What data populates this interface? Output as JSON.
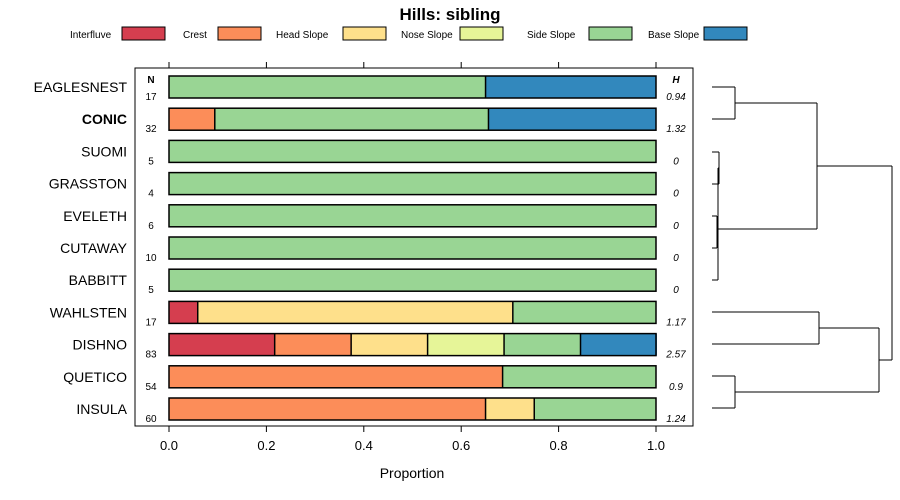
{
  "chart_data": {
    "type": "stacked-bar-horizontal",
    "title": "Hills: sibling",
    "xlabel": "Proportion",
    "xlim": [
      0,
      1
    ],
    "xticks": [
      "0.0",
      "0.2",
      "0.4",
      "0.6",
      "0.8",
      "1.0"
    ],
    "n_header": "N",
    "h_header": "H",
    "legend": [
      {
        "name": "Interfluve",
        "color": "#d53e4f"
      },
      {
        "name": "Crest",
        "color": "#fc8d59"
      },
      {
        "name": "Head Slope",
        "color": "#fee08b"
      },
      {
        "name": "Nose Slope",
        "color": "#e6f598"
      },
      {
        "name": "Side Slope",
        "color": "#99d594"
      },
      {
        "name": "Base Slope",
        "color": "#3288bd"
      }
    ],
    "rows": [
      {
        "label": "EAGLESNEST",
        "bold": false,
        "n": "17",
        "h": "0.94",
        "values": [
          0,
          0,
          0,
          0,
          0.65,
          0.35
        ]
      },
      {
        "label": "CONIC",
        "bold": true,
        "n": "32",
        "h": "1.32",
        "values": [
          0,
          0.094,
          0,
          0,
          0.562,
          0.344
        ]
      },
      {
        "label": "SUOMI",
        "bold": false,
        "n": "5",
        "h": "0",
        "values": [
          0,
          0,
          0,
          0,
          1,
          0
        ]
      },
      {
        "label": "GRASSTON",
        "bold": false,
        "n": "4",
        "h": "0",
        "values": [
          0,
          0,
          0,
          0,
          1,
          0
        ]
      },
      {
        "label": "EVELETH",
        "bold": false,
        "n": "6",
        "h": "0",
        "values": [
          0,
          0,
          0,
          0,
          1,
          0
        ]
      },
      {
        "label": "CUTAWAY",
        "bold": false,
        "n": "10",
        "h": "0",
        "values": [
          0,
          0,
          0,
          0,
          1,
          0
        ]
      },
      {
        "label": "BABBITT",
        "bold": false,
        "n": "5",
        "h": "0",
        "values": [
          0,
          0,
          0,
          0,
          1,
          0
        ]
      },
      {
        "label": "WAHLSTEN",
        "bold": false,
        "n": "17",
        "h": "1.17",
        "values": [
          0.059,
          0,
          0.647,
          0,
          0.294,
          0
        ]
      },
      {
        "label": "DISHNO",
        "bold": false,
        "n": "83",
        "h": "2.57",
        "values": [
          0.217,
          0.157,
          0.157,
          0.157,
          0.157,
          0.157
        ]
      },
      {
        "label": "QUETICO",
        "bold": false,
        "n": "54",
        "h": "0.9",
        "values": [
          0,
          0.685,
          0,
          0,
          0.315,
          0
        ]
      },
      {
        "label": "INSULA",
        "bold": false,
        "n": "60",
        "h": "1.24",
        "values": [
          0,
          0.65,
          0.1,
          0,
          0.25,
          0
        ]
      }
    ]
  }
}
